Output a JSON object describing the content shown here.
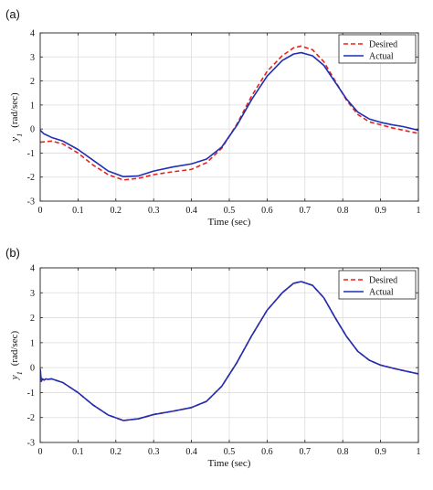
{
  "chart_data": [
    {
      "type": "line",
      "panel_label": "(a)",
      "xlabel": "Time (sec)",
      "ylabel_main": "y",
      "ylabel_sub": "1",
      "ylabel_unit": "(rad/sec)",
      "xlim": [
        0,
        1
      ],
      "ylim": [
        -3,
        4
      ],
      "xticks": [
        0,
        0.1,
        0.2,
        0.3,
        0.4,
        0.5,
        0.6,
        0.7,
        0.8,
        0.9,
        1
      ],
      "xtick_labels": [
        "0",
        "0.1",
        "0.2",
        "0.3",
        "0.4",
        "0.5",
        "0.6",
        "0.7",
        "0.8",
        "0.9",
        "1"
      ],
      "yticks": [
        -3,
        -2,
        -1,
        0,
        1,
        2,
        3,
        4
      ],
      "ytick_labels": [
        "-3",
        "-2",
        "-1",
        "0",
        "1",
        "2",
        "3",
        "4"
      ],
      "grid": true,
      "legend_placement": "top-right",
      "series": [
        {
          "name": "Desired",
          "color": "#e3231f",
          "style": "dashed",
          "points": [
            [
              0,
              -0.55
            ],
            [
              0.03,
              -0.5
            ],
            [
              0.06,
              -0.62
            ],
            [
              0.1,
              -1.0
            ],
            [
              0.14,
              -1.5
            ],
            [
              0.18,
              -1.9
            ],
            [
              0.22,
              -2.12
            ],
            [
              0.26,
              -2.05
            ],
            [
              0.3,
              -1.9
            ],
            [
              0.35,
              -1.78
            ],
            [
              0.4,
              -1.68
            ],
            [
              0.44,
              -1.4
            ],
            [
              0.48,
              -0.8
            ],
            [
              0.52,
              0.2
            ],
            [
              0.56,
              1.4
            ],
            [
              0.6,
              2.4
            ],
            [
              0.64,
              3.05
            ],
            [
              0.67,
              3.38
            ],
            [
              0.69,
              3.45
            ],
            [
              0.72,
              3.3
            ],
            [
              0.75,
              2.8
            ],
            [
              0.78,
              2.0
            ],
            [
              0.81,
              1.2
            ],
            [
              0.84,
              0.6
            ],
            [
              0.87,
              0.3
            ],
            [
              0.9,
              0.18
            ],
            [
              0.93,
              0.05
            ],
            [
              0.96,
              -0.05
            ],
            [
              1.0,
              -0.18
            ]
          ]
        },
        {
          "name": "Actual",
          "color": "#1f2fb4",
          "style": "solid",
          "points": [
            [
              0,
              -0.05
            ],
            [
              0.01,
              -0.2
            ],
            [
              0.03,
              -0.35
            ],
            [
              0.06,
              -0.5
            ],
            [
              0.1,
              -0.85
            ],
            [
              0.14,
              -1.3
            ],
            [
              0.18,
              -1.75
            ],
            [
              0.22,
              -1.98
            ],
            [
              0.26,
              -1.95
            ],
            [
              0.3,
              -1.75
            ],
            [
              0.35,
              -1.58
            ],
            [
              0.4,
              -1.45
            ],
            [
              0.44,
              -1.25
            ],
            [
              0.48,
              -0.75
            ],
            [
              0.52,
              0.15
            ],
            [
              0.56,
              1.25
            ],
            [
              0.6,
              2.2
            ],
            [
              0.64,
              2.85
            ],
            [
              0.67,
              3.12
            ],
            [
              0.69,
              3.18
            ],
            [
              0.72,
              3.05
            ],
            [
              0.75,
              2.65
            ],
            [
              0.78,
              1.95
            ],
            [
              0.81,
              1.25
            ],
            [
              0.84,
              0.7
            ],
            [
              0.87,
              0.42
            ],
            [
              0.9,
              0.28
            ],
            [
              0.93,
              0.18
            ],
            [
              0.96,
              0.1
            ],
            [
              1.0,
              -0.05
            ]
          ]
        }
      ]
    },
    {
      "type": "line",
      "panel_label": "(b)",
      "xlabel": "Time (sec)",
      "ylabel_main": "y",
      "ylabel_sub": "1",
      "ylabel_unit": "(rad/sec)",
      "xlim": [
        0,
        1
      ],
      "ylim": [
        -3,
        4
      ],
      "xticks": [
        0,
        0.1,
        0.2,
        0.3,
        0.4,
        0.5,
        0.6,
        0.7,
        0.8,
        0.9,
        1
      ],
      "xtick_labels": [
        "0",
        "0.1",
        "0.2",
        "0.3",
        "0.4",
        "0.5",
        "0.6",
        "0.7",
        "0.8",
        "0.9",
        "1"
      ],
      "yticks": [
        -3,
        -2,
        -1,
        0,
        1,
        2,
        3,
        4
      ],
      "ytick_labels": [
        "-3",
        "-2",
        "-1",
        "0",
        "1",
        "2",
        "3",
        "4"
      ],
      "grid": true,
      "legend_placement": "top-right",
      "series": [
        {
          "name": "Desired",
          "color": "#e3231f",
          "style": "dashed",
          "points": [
            [
              0,
              -0.05
            ],
            [
              0.003,
              -0.55
            ],
            [
              0.006,
              -0.45
            ],
            [
              0.01,
              -0.5
            ],
            [
              0.015,
              -0.45
            ],
            [
              0.02,
              -0.47
            ],
            [
              0.03,
              -0.45
            ],
            [
              0.06,
              -0.6
            ],
            [
              0.1,
              -1.0
            ],
            [
              0.14,
              -1.5
            ],
            [
              0.18,
              -1.9
            ],
            [
              0.22,
              -2.12
            ],
            [
              0.26,
              -2.05
            ],
            [
              0.3,
              -1.88
            ],
            [
              0.35,
              -1.75
            ],
            [
              0.4,
              -1.6
            ],
            [
              0.44,
              -1.35
            ],
            [
              0.48,
              -0.75
            ],
            [
              0.52,
              0.2
            ],
            [
              0.56,
              1.3
            ],
            [
              0.6,
              2.3
            ],
            [
              0.64,
              3.0
            ],
            [
              0.67,
              3.38
            ],
            [
              0.69,
              3.45
            ],
            [
              0.72,
              3.3
            ],
            [
              0.75,
              2.8
            ],
            [
              0.78,
              2.0
            ],
            [
              0.81,
              1.25
            ],
            [
              0.84,
              0.65
            ],
            [
              0.87,
              0.3
            ],
            [
              0.9,
              0.1
            ],
            [
              0.94,
              -0.05
            ],
            [
              1.0,
              -0.25
            ]
          ]
        },
        {
          "name": "Actual",
          "color": "#1f2fb4",
          "style": "solid",
          "points": [
            [
              0,
              -0.05
            ],
            [
              0.003,
              -0.55
            ],
            [
              0.006,
              -0.45
            ],
            [
              0.01,
              -0.5
            ],
            [
              0.015,
              -0.45
            ],
            [
              0.02,
              -0.47
            ],
            [
              0.03,
              -0.45
            ],
            [
              0.06,
              -0.6
            ],
            [
              0.1,
              -1.0
            ],
            [
              0.14,
              -1.5
            ],
            [
              0.18,
              -1.9
            ],
            [
              0.22,
              -2.12
            ],
            [
              0.26,
              -2.05
            ],
            [
              0.3,
              -1.88
            ],
            [
              0.35,
              -1.75
            ],
            [
              0.4,
              -1.6
            ],
            [
              0.44,
              -1.35
            ],
            [
              0.48,
              -0.75
            ],
            [
              0.52,
              0.2
            ],
            [
              0.56,
              1.3
            ],
            [
              0.6,
              2.3
            ],
            [
              0.64,
              3.0
            ],
            [
              0.67,
              3.38
            ],
            [
              0.69,
              3.45
            ],
            [
              0.72,
              3.3
            ],
            [
              0.75,
              2.8
            ],
            [
              0.78,
              2.0
            ],
            [
              0.81,
              1.25
            ],
            [
              0.84,
              0.65
            ],
            [
              0.87,
              0.3
            ],
            [
              0.9,
              0.1
            ],
            [
              0.94,
              -0.05
            ],
            [
              1.0,
              -0.25
            ]
          ]
        }
      ]
    }
  ]
}
